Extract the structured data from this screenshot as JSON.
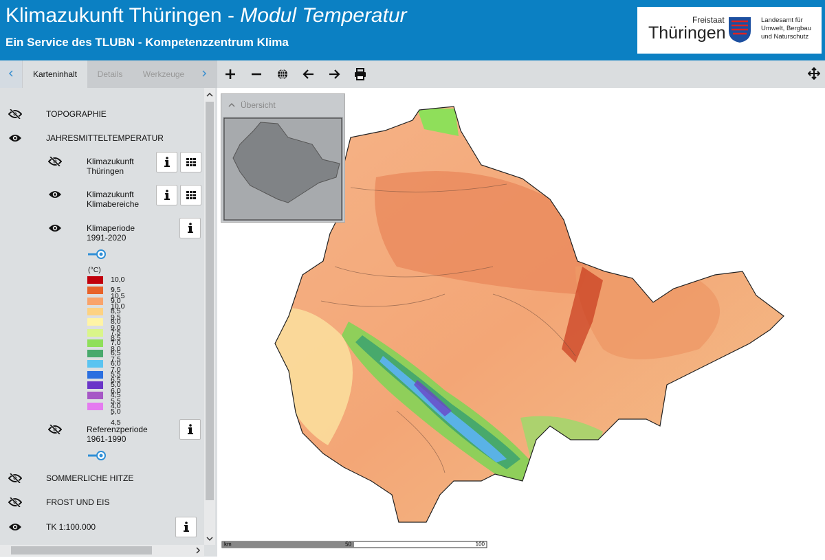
{
  "header": {
    "title": "Klimazukunft Thüringen - ",
    "title_emphasis": "Modul Temperatur",
    "subtitle": "Ein Service des TLUBN - Kompetenzzentrum Klima"
  },
  "logo": {
    "state_prefix": "Freistaat",
    "state": "Thüringen",
    "agency": [
      "Landesamt für",
      "Umwelt, Bergbau",
      "und Naturschutz"
    ]
  },
  "tabs": [
    "Karteninhalt",
    "Details",
    "Werkzeuge"
  ],
  "layers": [
    {
      "label": "TOPOGRAPHIE"
    },
    {
      "label": "JAHRESMITTELTEMPERATUR",
      "sublayers": [
        {
          "label": [
            "Klimazukunft",
            "Thüringen"
          ]
        },
        {
          "label": [
            "Klimazukunft",
            "Klimabereiche"
          ]
        },
        {
          "label": [
            "Klimaperiode",
            "1991-2020"
          ],
          "legend": {
            "unit": "(°C)",
            "items": [
              {
                "label": "10,0 - 10,5",
                "color": "#c1000b"
              },
              {
                "label": "9,5 - 10,0",
                "color": "#e8622a"
              },
              {
                "label": "9,0 - 9,5",
                "color": "#f9a36b"
              },
              {
                "label": "8,5 - 9,0",
                "color": "#fdd282"
              },
              {
                "label": "8,0 - 8,5",
                "color": "#fff4a6"
              },
              {
                "label": "7,5 - 8,0",
                "color": "#daf58a"
              },
              {
                "label": "7,0 - 7,5",
                "color": "#8fdf5a"
              },
              {
                "label": "6,5 - 7,0",
                "color": "#48a96c"
              },
              {
                "label": "6,0 - 6,5",
                "color": "#5ac4f1"
              },
              {
                "label": "5,5 - 6,0",
                "color": "#2a6fe0"
              },
              {
                "label": "5,0 - 5,5",
                "color": "#6a35c8"
              },
              {
                "label": "4,5 - 5,0",
                "color": "#a657c6"
              },
              {
                "label": "4,0 - 4,5",
                "color": "#e57bf0"
              }
            ]
          }
        },
        {
          "label": [
            "Referenzperiode",
            "1961-1990"
          ]
        }
      ]
    },
    {
      "label": "SOMMERLICHE HITZE"
    },
    {
      "label": "FROST UND EIS"
    },
    {
      "label": "TK 1:100.000"
    }
  ],
  "overview": {
    "title": "Übersicht"
  },
  "scalebar": {
    "unit": "km",
    "labels": [
      "50",
      "100"
    ]
  }
}
